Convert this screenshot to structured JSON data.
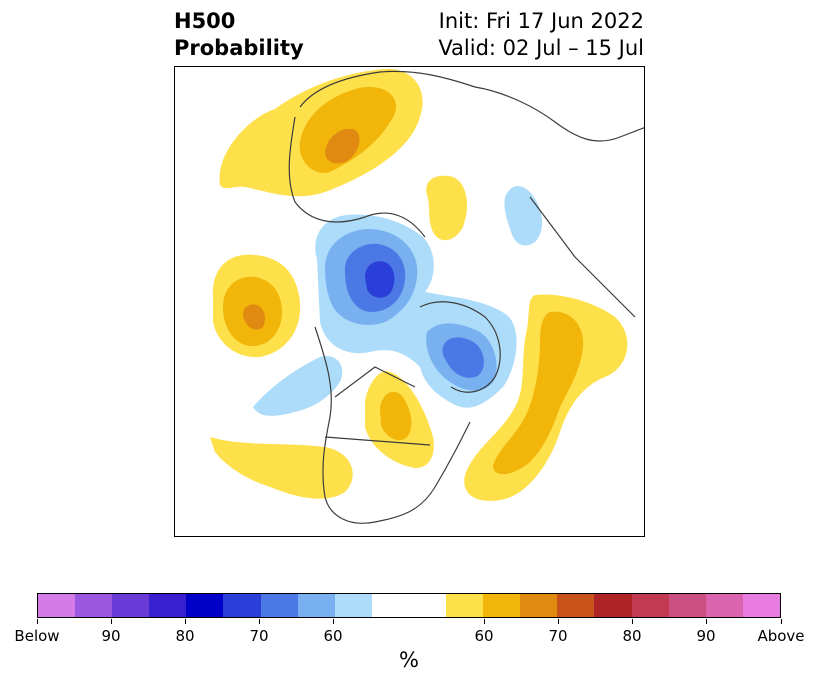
{
  "title": {
    "left_line1": "H500",
    "left_line2": "Probability",
    "right_line1": "Init: Fri 17 Jun 2022",
    "right_line2": "Valid: 02 Jul – 15 Jul"
  },
  "colorbar": {
    "colors": [
      "#d47be8",
      "#9c57e0",
      "#6a3ad8",
      "#3a1fd0",
      "#0000c8",
      "#2a3fd8",
      "#4c78e6",
      "#78b0f0",
      "#acdcfa",
      "#ffffff",
      "#fde04a",
      "#f2b60a",
      "#e08a12",
      "#c8541c",
      "#b02428",
      "#c23a52",
      "#cc4f82",
      "#db64ae",
      "#e87ce0"
    ],
    "labels": [
      "Below",
      "90",
      "80",
      "70",
      "60",
      "60",
      "70",
      "80",
      "90",
      "Above"
    ],
    "unit": "%"
  },
  "map": {
    "colors": {
      "yellow_light": "#fde04a",
      "yellow_mid": "#f2b60a",
      "orange": "#e08a12",
      "blue_pale": "#acdcfa",
      "blue_light": "#78b0f0",
      "blue_mid": "#4c78e6",
      "blue_dark": "#2a3fd8",
      "border": "#3c3c3c"
    }
  }
}
